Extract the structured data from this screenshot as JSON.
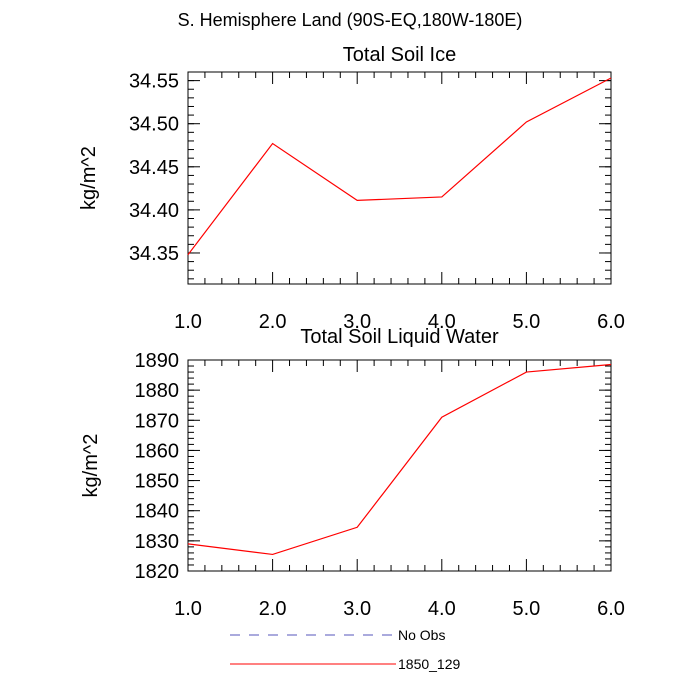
{
  "figure_title": "S. Hemisphere Land (90S-EQ,180W-180E)",
  "chart_data": [
    {
      "type": "line",
      "title": "Total Soil Ice",
      "xlabel": "",
      "ylabel": "kg/m^2",
      "x": [
        1,
        2,
        3,
        4,
        5,
        6
      ],
      "xlim": [
        1,
        6
      ],
      "ylim": [
        34.314,
        34.56
      ],
      "xticks": [
        1,
        2,
        3,
        4,
        5,
        6
      ],
      "xtick_labels": [
        "1.0",
        "2.0",
        "3.0",
        "4.0",
        "5.0",
        "6.0"
      ],
      "yticks": [
        34.35,
        34.4,
        34.45,
        34.5,
        34.55
      ],
      "ytick_labels": [
        "34.35",
        "34.40",
        "34.45",
        "34.50",
        "34.55"
      ],
      "grid": false,
      "series": [
        {
          "name": "1850_129",
          "color": "#ff0000",
          "values": [
            34.348,
            34.477,
            34.411,
            34.415,
            34.502,
            34.553
          ]
        }
      ]
    },
    {
      "type": "line",
      "title": "Total Soil Liquid Water",
      "xlabel": "",
      "ylabel": "kg/m^2",
      "x": [
        1,
        2,
        3,
        4,
        5,
        6
      ],
      "xlim": [
        1,
        6
      ],
      "ylim": [
        1820,
        1890
      ],
      "xticks": [
        1,
        2,
        3,
        4,
        5,
        6
      ],
      "xtick_labels": [
        "1.0",
        "2.0",
        "3.0",
        "4.0",
        "5.0",
        "6.0"
      ],
      "yticks": [
        1820,
        1830,
        1840,
        1850,
        1860,
        1870,
        1880,
        1890
      ],
      "ytick_labels": [
        "1820",
        "1830",
        "1840",
        "1850",
        "1860",
        "1870",
        "1880",
        "1890"
      ],
      "grid": false,
      "series": [
        {
          "name": "1850_129",
          "color": "#ff0000",
          "values": [
            1829,
            1825.5,
            1834.5,
            1871,
            1886,
            1888.5
          ]
        }
      ]
    }
  ],
  "legend": {
    "placement": "bottom",
    "items": [
      {
        "label": "No Obs",
        "color": "#5555bb",
        "style": "dashed"
      },
      {
        "label": "1850_129",
        "color": "#ff0000",
        "style": "solid"
      }
    ]
  }
}
